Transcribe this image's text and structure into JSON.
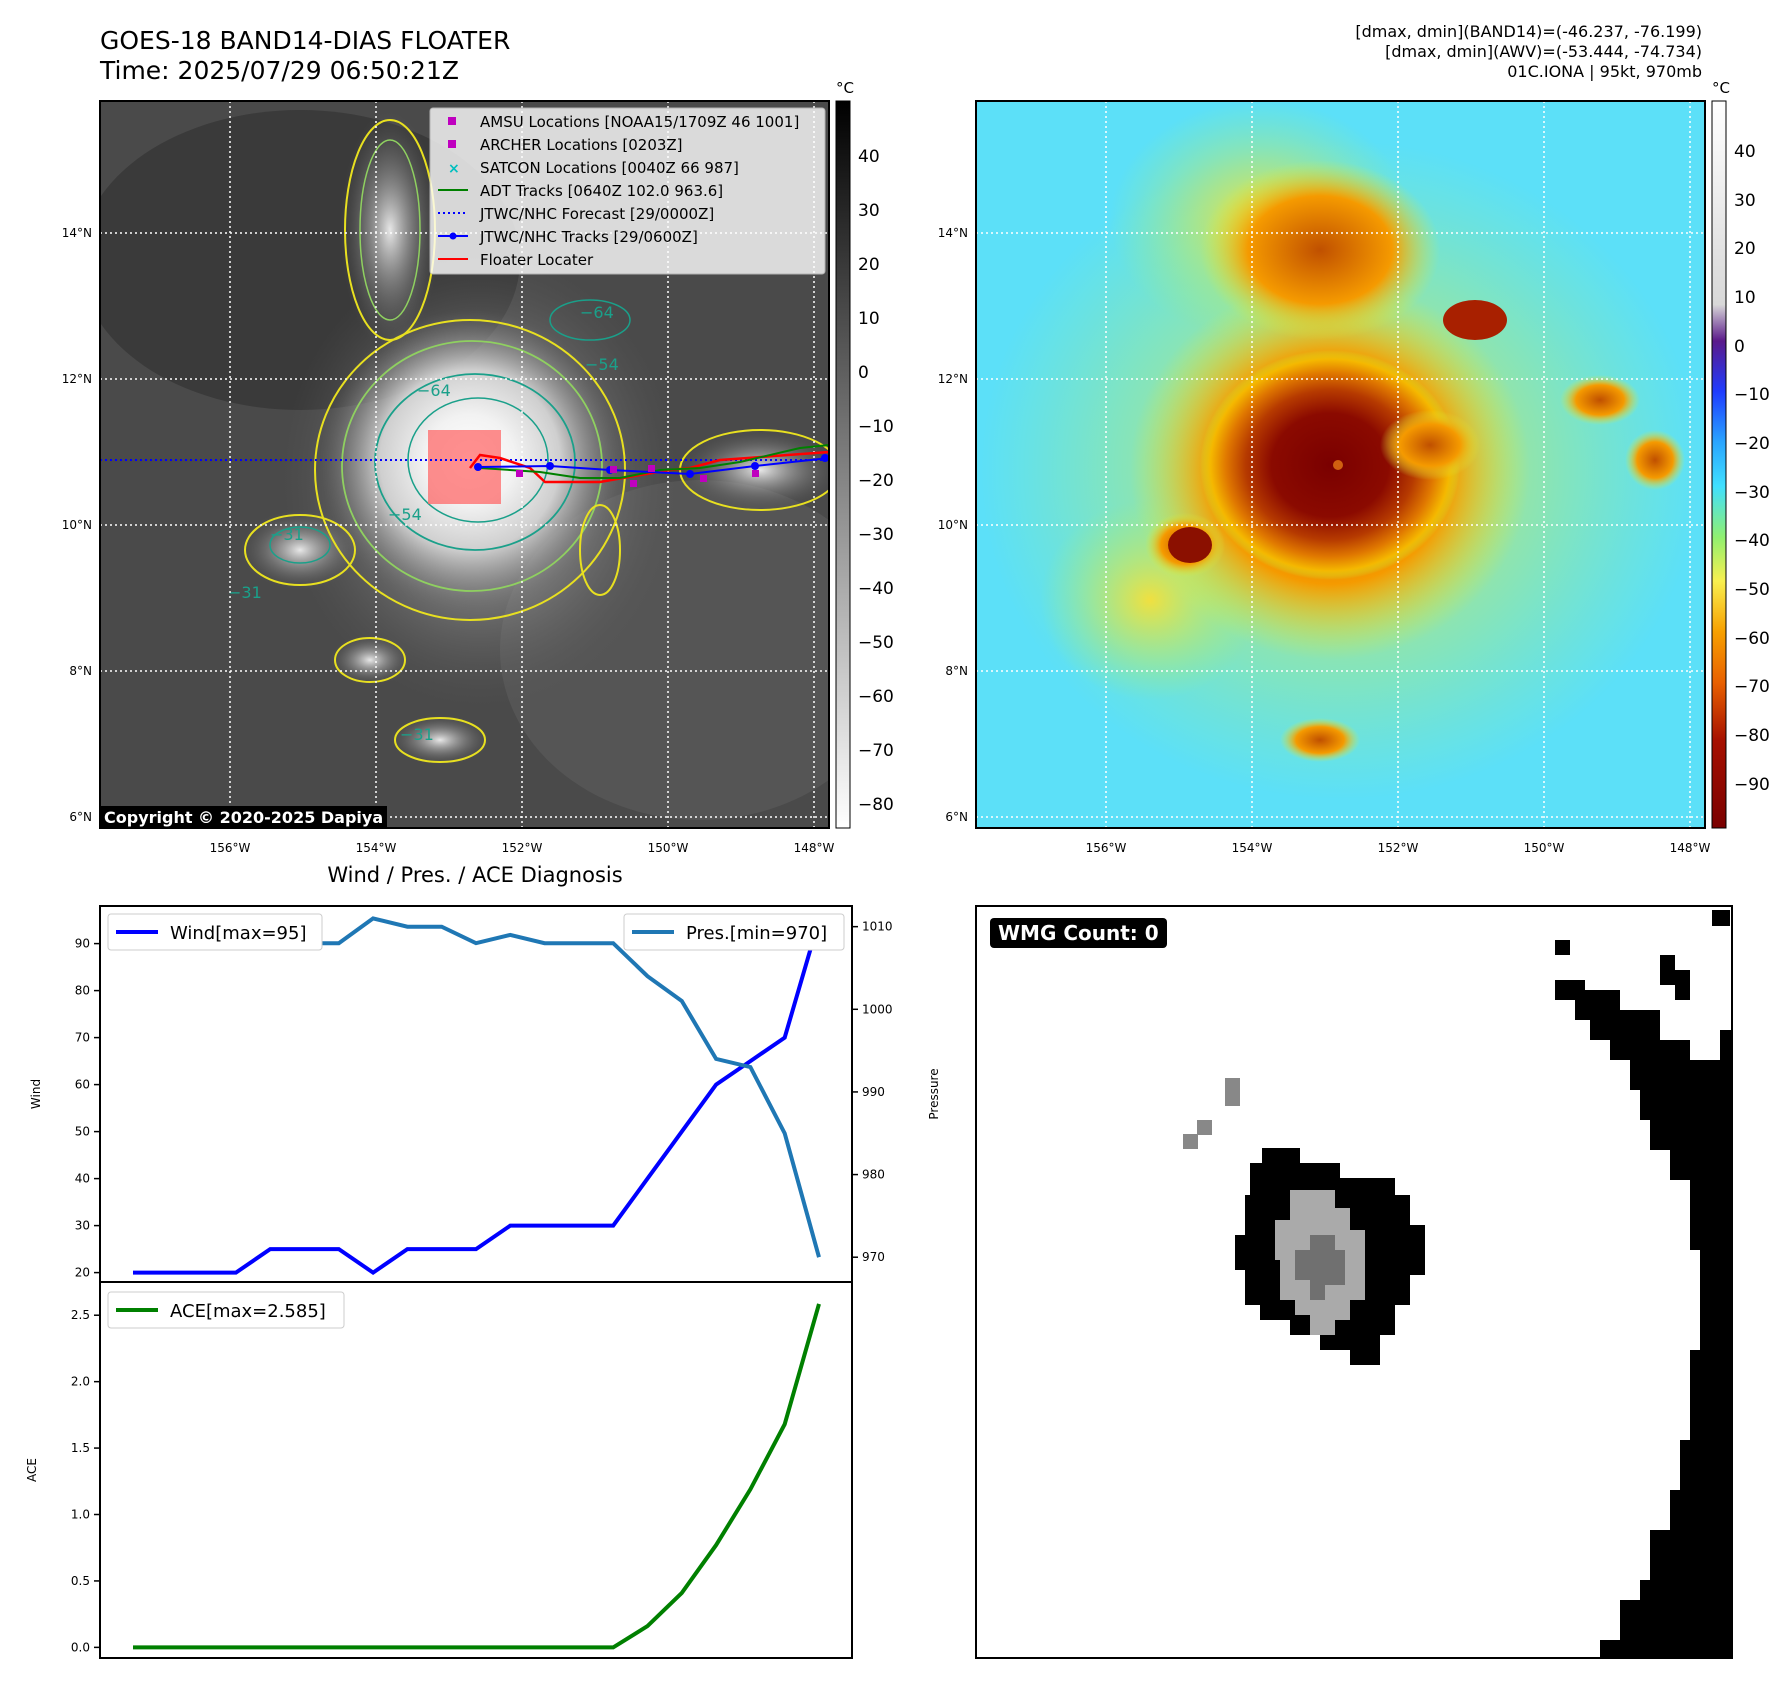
{
  "header": {
    "title_line1": "GOES-18 BAND14-DIAS FLOATER",
    "title_line2": "Time: 2025/07/29 06:50:21Z",
    "info_line1": "[dmax, dmin](BAND14)=(-46.237, -76.199)",
    "info_line2": "[dmax, dmin](AWV)=(-53.444, -74.734)",
    "info_line3": "01C.IONA | 95kt, 970mb"
  },
  "ir_map": {
    "lat_labels": [
      "14°N",
      "12°N",
      "10°N",
      "8°N",
      "6°N"
    ],
    "lon_labels": [
      "156°W",
      "154°W",
      "152°W",
      "150°W",
      "148°W"
    ],
    "colorbar_unit": "°C",
    "colorbar_ticks": [
      "40",
      "30",
      "20",
      "10",
      "0",
      "−10",
      "−20",
      "−30",
      "−40",
      "−50",
      "−60",
      "−70",
      "−80"
    ],
    "contour_labels": [
      "−64",
      "−54",
      "−64",
      "−31",
      "−31",
      "−31",
      "−54"
    ],
    "copyright": "Copyright © 2020-2025 Dapiya",
    "legend": [
      {
        "label": "AMSU Locations [NOAA15/1709Z 46 1001]",
        "color": "#bf00bf",
        "marker": "square"
      },
      {
        "label": "ARCHER Locations [0203Z]",
        "color": "#bf00bf",
        "marker": "square"
      },
      {
        "label": "SATCON Locations [0040Z 66 987]",
        "color": "#00bfbf",
        "marker": "x"
      },
      {
        "label": "ADT Tracks [0640Z 102.0 963.6]",
        "color": "#008000",
        "marker": "line"
      },
      {
        "label": "JTWC/NHC Forecast [29/0000Z]",
        "color": "#0000ff",
        "marker": "dotted"
      },
      {
        "label": "JTWC/NHC Tracks [29/0600Z]",
        "color": "#0000ff",
        "marker": "line-dot"
      },
      {
        "label": "Floater Locater",
        "color": "#ff0000",
        "marker": "line"
      }
    ]
  },
  "awv_map": {
    "lat_labels": [
      "14°N",
      "12°N",
      "10°N",
      "8°N",
      "6°N"
    ],
    "lon_labels": [
      "156°W",
      "154°W",
      "152°W",
      "150°W",
      "148°W"
    ],
    "colorbar_unit": "°C",
    "colorbar_ticks": [
      "40",
      "30",
      "20",
      "10",
      "0",
      "−10",
      "−20",
      "−30",
      "−40",
      "−50",
      "−60",
      "−70",
      "−80",
      "−90"
    ]
  },
  "wmg": {
    "label": "WMG Count: 0"
  },
  "chart_data": [
    {
      "type": "line",
      "title": "Wind / Pres. / ACE Diagnosis",
      "ylabel": "Wind",
      "y2label": "Pressure",
      "ylim": [
        18,
        98
      ],
      "y2lim": [
        967,
        1012.5
      ],
      "yticks": [
        20,
        30,
        40,
        50,
        60,
        70,
        80,
        90
      ],
      "y2ticks": [
        970,
        980,
        990,
        1000,
        1010
      ],
      "series": [
        {
          "name": "Wind[max=95]",
          "axis": "left",
          "color": "#0000ff",
          "values": [
            20,
            20,
            20,
            20,
            25,
            25,
            25,
            20,
            25,
            25,
            25,
            30,
            30,
            30,
            30,
            40,
            50,
            60,
            65,
            70,
            95
          ]
        },
        {
          "name": "Pres.[min=970]",
          "axis": "right",
          "color": "#1f77b4",
          "values": [
            1010,
            1010,
            1010,
            1009,
            1009,
            1008,
            1008,
            1011,
            1010,
            1010,
            1008,
            1009,
            1008,
            1008,
            1008,
            1004,
            1001,
            994,
            993,
            985,
            970
          ]
        }
      ]
    },
    {
      "type": "line",
      "ylabel": "ACE",
      "ylim": [
        -0.08,
        2.75
      ],
      "yticks": [
        0.0,
        0.5,
        1.0,
        1.5,
        2.0,
        2.5
      ],
      "series": [
        {
          "name": "ACE[max=2.585]",
          "color": "#008000",
          "values": [
            0,
            0,
            0,
            0,
            0,
            0,
            0,
            0,
            0,
            0,
            0,
            0,
            0,
            0,
            0,
            0.16,
            0.41,
            0.77,
            1.19,
            1.68,
            2.585
          ]
        }
      ]
    }
  ]
}
